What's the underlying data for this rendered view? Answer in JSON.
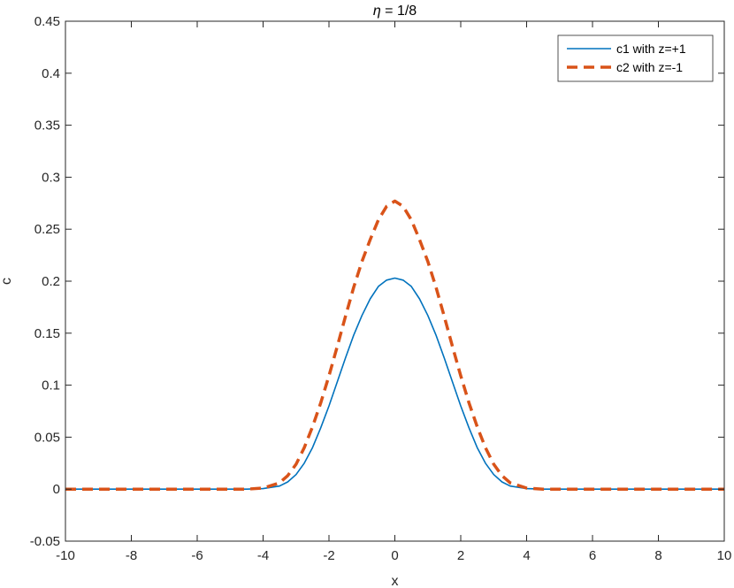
{
  "chart_data": {
    "type": "line",
    "title_prefix": "η",
    "title_suffix": " = 1/8",
    "xlabel": "x",
    "ylabel": "c",
    "xlim": [
      -10,
      10
    ],
    "ylim": [
      -0.05,
      0.45
    ],
    "x_ticks": [
      "-10",
      "-8",
      "-6",
      "-4",
      "-2",
      "0",
      "2",
      "4",
      "6",
      "8",
      "10"
    ],
    "y_ticks": [
      "-0.05",
      "0",
      "0.05",
      "0.1",
      "0.15",
      "0.2",
      "0.25",
      "0.3",
      "0.35",
      "0.4",
      "0.45"
    ],
    "grid": false,
    "legend_position": "top-right",
    "series": [
      {
        "name": "c1 with z=+1",
        "color": "#0072BD",
        "style": "solid",
        "x": [
          -10,
          -8,
          -6,
          -4.5,
          -4,
          -3.5,
          -3.25,
          -3,
          -2.75,
          -2.5,
          -2.25,
          -2,
          -1.75,
          -1.5,
          -1.25,
          -1,
          -0.75,
          -0.5,
          -0.25,
          0,
          0.25,
          0.5,
          0.75,
          1,
          1.25,
          1.5,
          1.75,
          2,
          2.25,
          2.5,
          2.75,
          3,
          3.25,
          3.5,
          4,
          4.5,
          6,
          8,
          10
        ],
        "y": [
          0,
          0,
          0,
          0,
          0.0005,
          0.003,
          0.007,
          0.014,
          0.025,
          0.04,
          0.059,
          0.08,
          0.103,
          0.126,
          0.148,
          0.167,
          0.183,
          0.195,
          0.201,
          0.203,
          0.201,
          0.195,
          0.183,
          0.167,
          0.148,
          0.126,
          0.103,
          0.08,
          0.059,
          0.04,
          0.025,
          0.014,
          0.007,
          0.003,
          0.0005,
          0,
          0,
          0,
          0
        ]
      },
      {
        "name": "c2 with z=-1",
        "color": "#D95319",
        "style": "dashed",
        "x": [
          -10,
          -8,
          -6,
          -4.5,
          -4,
          -3.5,
          -3.25,
          -3,
          -2.75,
          -2.5,
          -2.25,
          -2,
          -1.75,
          -1.5,
          -1.25,
          -1,
          -0.75,
          -0.5,
          -0.25,
          0,
          0.25,
          0.5,
          0.75,
          1,
          1.25,
          1.5,
          1.75,
          2,
          2.25,
          2.5,
          2.75,
          3,
          3.25,
          3.5,
          4,
          4.5,
          6,
          8,
          10
        ],
        "y": [
          0,
          0,
          0,
          0,
          0.001,
          0.006,
          0.013,
          0.024,
          0.04,
          0.06,
          0.083,
          0.109,
          0.137,
          0.166,
          0.194,
          0.219,
          0.24,
          0.259,
          0.272,
          0.277,
          0.272,
          0.259,
          0.24,
          0.219,
          0.194,
          0.166,
          0.137,
          0.109,
          0.083,
          0.06,
          0.04,
          0.024,
          0.013,
          0.006,
          0.001,
          0,
          0,
          0,
          0
        ]
      }
    ]
  }
}
